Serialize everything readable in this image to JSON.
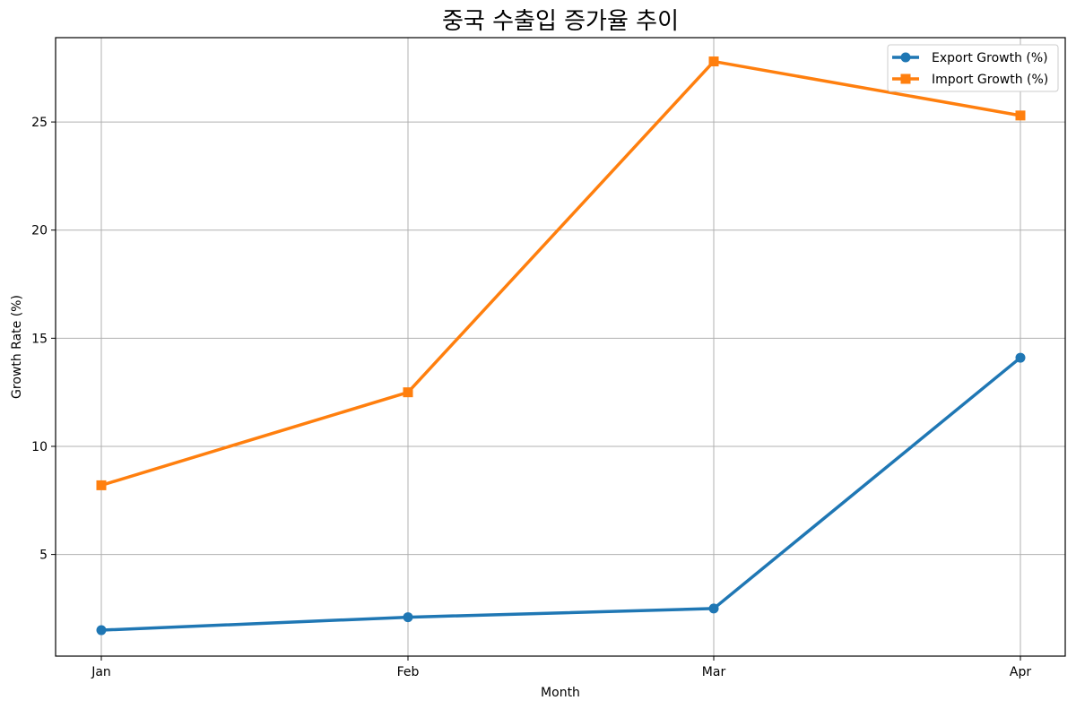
{
  "chart_data": {
    "type": "line",
    "title": "중국 수출입 증가율 추이",
    "xlabel": "Month",
    "ylabel": "Growth Rate (%)",
    "categories": [
      "Jan",
      "Feb",
      "Mar",
      "Apr"
    ],
    "ylim": [
      0.3,
      28.9
    ],
    "yticks": [
      5,
      10,
      15,
      20,
      25
    ],
    "grid": true,
    "legend_position": "top-right",
    "series": [
      {
        "name": "Export Growth (%)",
        "values": [
          1.5,
          2.1,
          2.5,
          14.1
        ],
        "color": "#1f77b4",
        "marker": "circle"
      },
      {
        "name": "Import Growth (%)",
        "values": [
          8.2,
          12.5,
          27.8,
          25.3
        ],
        "color": "#ff7f0e",
        "marker": "square"
      }
    ]
  }
}
